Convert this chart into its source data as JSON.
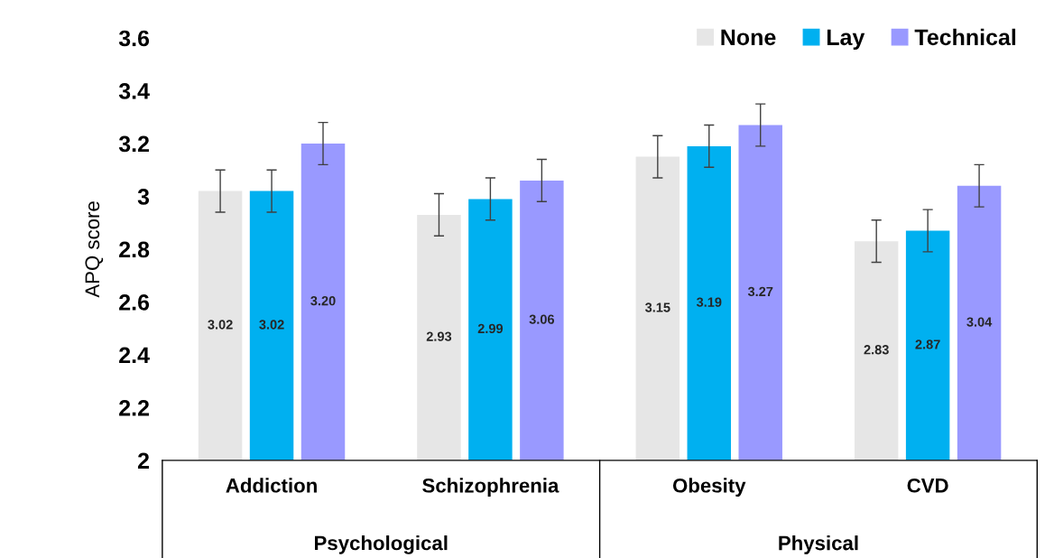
{
  "chart_data": {
    "type": "bar",
    "ylabel": "APQ score",
    "categories": [
      "Addiction",
      "Schizophrenia",
      "Obesity",
      "CVD"
    ],
    "series": [
      {
        "name": "None",
        "color": "#e6e6e6",
        "values": [
          3.02,
          2.93,
          3.15,
          2.83
        ],
        "value_labels": [
          "3.02",
          "2.93",
          "3.15",
          "2.83"
        ],
        "errors": [
          0.08,
          0.08,
          0.08,
          0.08
        ]
      },
      {
        "name": "Lay",
        "color": "#00b0f0",
        "values": [
          3.02,
          2.99,
          3.19,
          2.87
        ],
        "value_labels": [
          "3.02",
          "2.99",
          "3.19",
          "2.87"
        ],
        "errors": [
          0.08,
          0.08,
          0.08,
          0.08
        ]
      },
      {
        "name": "Technical",
        "color": "#9999ff",
        "values": [
          3.2,
          3.06,
          3.27,
          3.04
        ],
        "value_labels": [
          "3.20",
          "3.06",
          "3.27",
          "3.04"
        ],
        "errors": [
          0.08,
          0.08,
          0.08,
          0.08
        ]
      }
    ],
    "ylim": [
      2,
      3.6
    ],
    "yticks": [
      2,
      2.2,
      2.4,
      2.6,
      2.8,
      3,
      3.2,
      3.4,
      3.6
    ],
    "legend": "top right",
    "grid": false,
    "annotations": [
      "Psychological",
      "Physical"
    ]
  }
}
